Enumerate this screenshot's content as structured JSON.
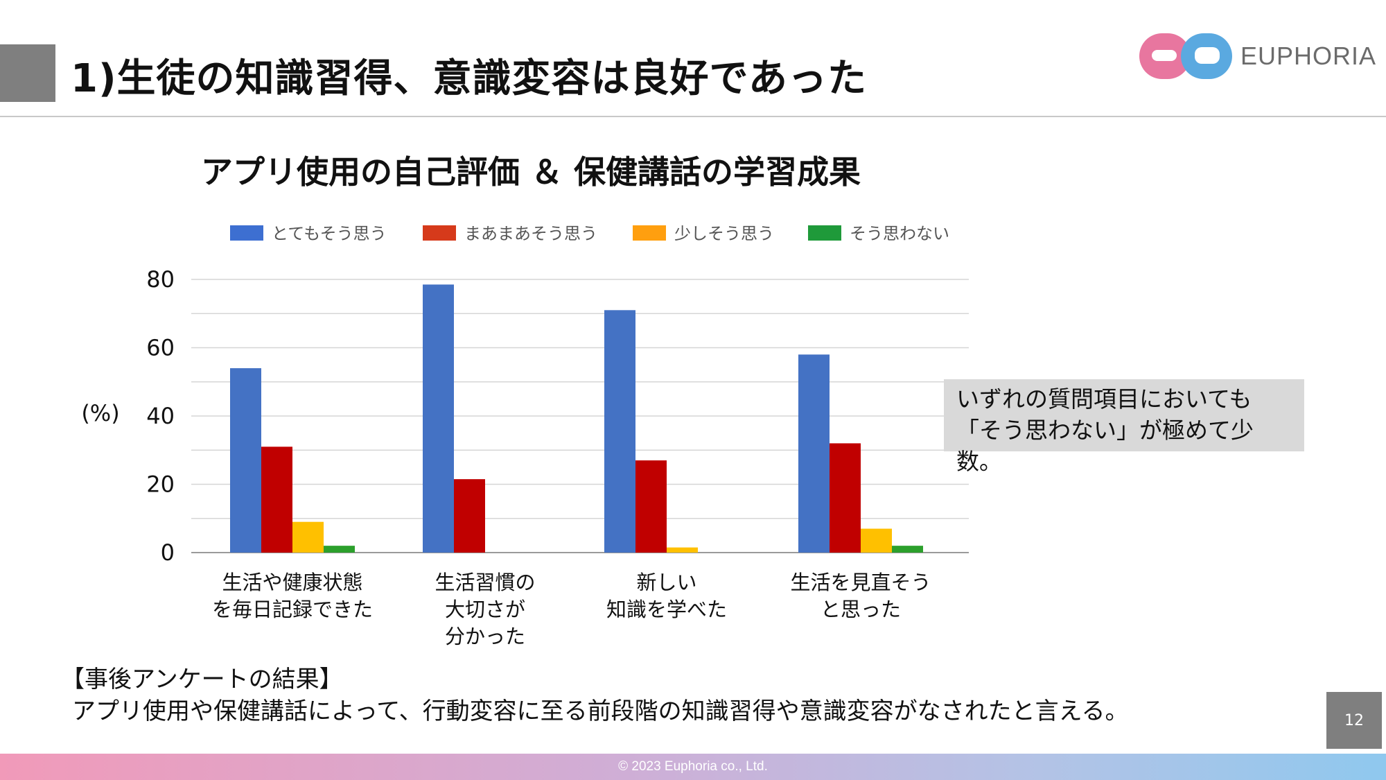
{
  "header": {
    "title": "1)生徒の知識習得、意識変容は良好であった",
    "logo_text": "EUPHORIA"
  },
  "chart_title": "アプリ使用の自己評価 ＆ 保健講話の学習成果",
  "y_unit": "(%)",
  "colors": {
    "header_square": "#7f7f7f",
    "series": [
      "#4472c4",
      "#c00000",
      "#ffc000",
      "#2ca02c"
    ],
    "legend_swatches": [
      "#3d6fd1",
      "#d63a1b",
      "#ff9f0f",
      "#1f9a3a"
    ]
  },
  "chart_data": {
    "type": "bar",
    "categories": [
      [
        "生活や健康状態",
        "を毎日記録できた"
      ],
      [
        "生活習慣の",
        "大切さが",
        "分かった"
      ],
      [
        "新しい",
        "知識を学べた"
      ],
      [
        "生活を見直そう",
        "と思った"
      ]
    ],
    "series": [
      {
        "name": "とてもそう思う",
        "values": [
          54,
          78.5,
          71,
          58
        ]
      },
      {
        "name": "まあまあそう思う",
        "values": [
          31,
          21.5,
          27,
          32
        ]
      },
      {
        "name": "少しそう思う",
        "values": [
          9,
          0,
          1.5,
          7
        ]
      },
      {
        "name": "そう思わない",
        "values": [
          2,
          0,
          0,
          2
        ]
      }
    ],
    "ylabel": "(%)",
    "ylim": [
      0,
      80
    ],
    "yticks": [
      0,
      20,
      40,
      60,
      80
    ],
    "grid": true,
    "legend": "top"
  },
  "note": {
    "line1": "いずれの質問項目においても",
    "line2": "「そう思わない」が極めて少数。"
  },
  "survey": {
    "heading": "【事後アンケートの結果】",
    "body": "アプリ使用や保健講話によって、行動変容に至る前段階の知識習得や意識変容がなされたと言える。"
  },
  "page_number": "12",
  "footer": "© 2023 Euphoria co., Ltd."
}
